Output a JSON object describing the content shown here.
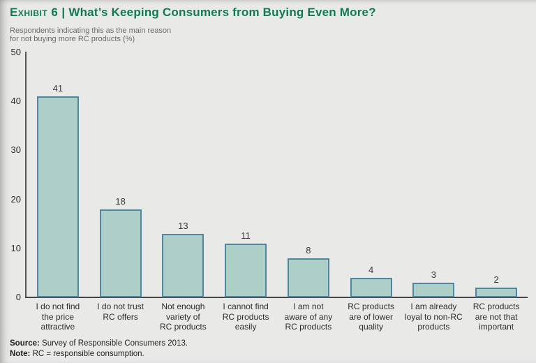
{
  "header": {
    "exhibit_label": "Exhibit 6",
    "separator": "|",
    "title": "What’s Keeping Consumers from Buying Even More?",
    "subtitle_line1": "Respondents indicating this as the main reason",
    "subtitle_line2": "for not buying more RC products (%)"
  },
  "chart_data": {
    "type": "bar",
    "title": "What’s Keeping Consumers from Buying Even More?",
    "subtitle": "Respondents indicating this as the main reason for not buying more RC products (%)",
    "categories": [
      "I do not find\nthe price\nattractive",
      "I do not trust\nRC offers",
      "Not enough\nvariety of\nRC products",
      "I cannot find\nRC products\neasily",
      "I am not\naware of any\nRC products",
      "RC products\nare of lower\nquality",
      "I am already\nloyal to non-RC\nproducts",
      "RC products\nare not that\nimportant"
    ],
    "values": [
      41,
      18,
      13,
      11,
      8,
      4,
      3,
      2
    ],
    "xlabel": "",
    "ylabel": "Respondents indicating this as the main reason for not buying more RC products (%)",
    "ylim": [
      0,
      50
    ],
    "yticks": [
      0,
      10,
      20,
      30,
      40,
      50
    ],
    "grid": false,
    "legend": false,
    "bar_fill": "#aecfc7",
    "bar_border": "#4f86a0"
  },
  "footer": {
    "source_label": "Source:",
    "source_text": " Survey of Responsible Consumers 2013.",
    "note_label": "Note:",
    "note_text": " RC = responsible consumption."
  },
  "colors": {
    "background": "#e9e9e8",
    "title_green": "#117a51",
    "axis": "#4a4a4c",
    "bar_fill": "#aecfc7",
    "bar_border": "#4f86a0",
    "subtitle_gray": "#6b6b6b",
    "text_dark": "#2d2d2d"
  }
}
